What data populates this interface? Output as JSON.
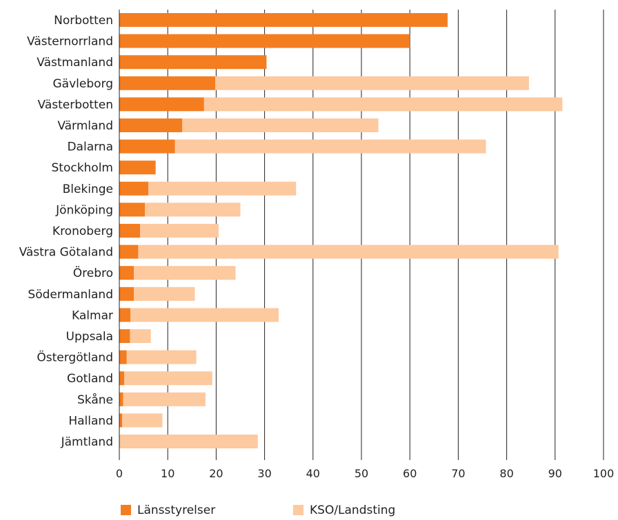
{
  "chart_data": {
    "type": "bar",
    "orientation": "horizontal",
    "stacked": true,
    "categories": [
      "Norbotten",
      "Västernorrland",
      "Västmanland",
      "Gävleborg",
      "Västerbotten",
      "Värmland",
      "Dalarna",
      "Stockholm",
      "Blekinge",
      "Jönköping",
      "Kronoberg",
      "Västra Götaland",
      "Örebro",
      "Södermanland",
      "Kalmar",
      "Uppsala",
      "Östergötland",
      "Gotland",
      "Skåne",
      "Halland",
      "Jämtland"
    ],
    "series": [
      {
        "name": "Länsstyrelser",
        "color": "#f47d20",
        "values": [
          67.8,
          60,
          30.4,
          19.8,
          17.5,
          13,
          11.5,
          7.5,
          6,
          5.3,
          4.3,
          3.9,
          3,
          3,
          2.3,
          2.2,
          1.5,
          1,
          0.8,
          0.6,
          0
        ]
      },
      {
        "name": "KSO/Landsting",
        "color": "#fdc99f",
        "values": [
          0,
          0,
          0,
          64.8,
          74,
          40.5,
          64.2,
          0,
          30.5,
          19.7,
          16.2,
          86.8,
          21,
          12.6,
          30.6,
          4.3,
          14.4,
          18.2,
          17,
          8.3,
          28.6
        ]
      }
    ],
    "xlim": [
      0,
      100
    ],
    "xticks": [
      "0",
      "10",
      "20",
      "30",
      "40",
      "50",
      "60",
      "70",
      "80",
      "90",
      "100"
    ],
    "grid": "vertical",
    "legend_position": "bottom",
    "title": "",
    "xlabel": "",
    "ylabel": ""
  }
}
